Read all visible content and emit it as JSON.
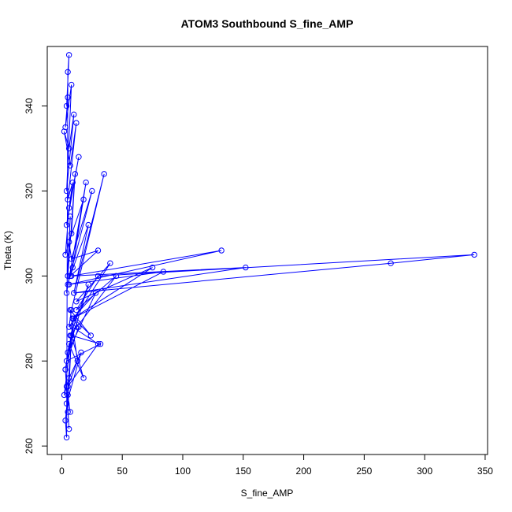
{
  "chart_data": {
    "type": "line",
    "title": "ATOM3 Southbound S_fine_AMP",
    "xlabel": "S_fine_AMP",
    "ylabel": "Theta (K)",
    "xlim": [
      -12,
      352
    ],
    "ylim": [
      258,
      354
    ],
    "x_ticks": [
      0,
      50,
      100,
      150,
      200,
      250,
      300,
      350
    ],
    "y_ticks": [
      260,
      280,
      300,
      320,
      340
    ],
    "grid": false,
    "legend": "none",
    "marker": "open-circle",
    "color": "#0000ff",
    "series": [
      {
        "x": [
          5,
          3,
          8,
          4,
          10,
          6,
          2,
          7,
          12,
          5,
          9,
          4,
          14,
          6,
          3,
          8,
          11,
          5,
          7,
          4,
          20,
          9,
          6,
          18,
          5,
          25,
          8,
          30,
          7,
          22,
          10,
          35,
          8,
          6,
          40,
          12,
          75,
          9,
          84,
          6,
          132,
          8,
          152,
          10,
          272,
          341,
          30,
          12,
          45,
          7,
          22,
          5,
          28,
          9,
          14,
          4,
          32,
          8,
          18,
          6,
          3,
          10,
          24,
          7,
          13,
          5,
          30,
          9,
          4,
          16,
          6,
          2,
          8,
          5,
          3,
          6,
          4,
          7,
          5,
          3,
          4,
          5,
          6,
          4
        ],
        "y": [
          342,
          335,
          345,
          320,
          338,
          330,
          334,
          326,
          336,
          318,
          322,
          312,
          328,
          316,
          305,
          310,
          324,
          300,
          314,
          296,
          322,
          302,
          308,
          318,
          298,
          320,
          304,
          306,
          300,
          312,
          296,
          324,
          292,
          288,
          303,
          294,
          302,
          290,
          301,
          298,
          306,
          300,
          302,
          296,
          303,
          305,
          300,
          292,
          300,
          286,
          298,
          282,
          296,
          290,
          288,
          280,
          284,
          286,
          276,
          284,
          278,
          290,
          286,
          292,
          280,
          274,
          284,
          288,
          270,
          282,
          276,
          272,
          286,
          268,
          278,
          264,
          274,
          268,
          272,
          266,
          262,
          348,
          352,
          340
        ]
      }
    ]
  }
}
